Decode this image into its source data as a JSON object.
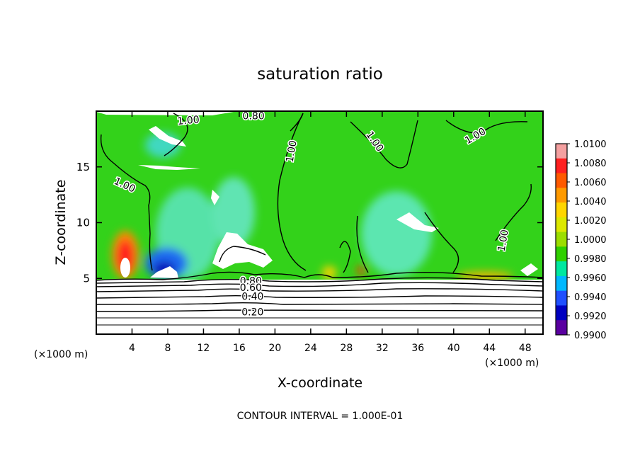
{
  "chart_data": {
    "type": "heatmap",
    "title": "saturation ratio",
    "xlabel": "X-coordinate",
    "ylabel": "Z-coordinate",
    "x_unit": "(×1000 m)",
    "z_unit": "(×1000 m)",
    "xlim": [
      0,
      50
    ],
    "ylim": [
      0,
      20
    ],
    "x_ticks": [
      4,
      8,
      12,
      16,
      20,
      24,
      28,
      32,
      36,
      40,
      44,
      48
    ],
    "y_ticks": [
      5,
      10,
      15
    ],
    "colorbar": {
      "min": 0.99,
      "max": 1.01,
      "labels": [
        "1.0100",
        "1.0080",
        "1.0060",
        "1.0040",
        "1.0020",
        "1.0000",
        "0.9980",
        "0.9960",
        "0.9940",
        "0.9920",
        "0.9900"
      ],
      "colors": [
        "#f4a0a0",
        "#ff2020",
        "#ff5a00",
        "#ff9a00",
        "#ffd600",
        "#dce800",
        "#9cde00",
        "#30d000",
        "#00e8a0",
        "#00b8ff",
        "#2050ff",
        "#0000c0",
        "#5a00a0"
      ]
    },
    "contour_labels": [
      {
        "text": "1.00",
        "x": 10.3,
        "z": 19.2,
        "angle": -5
      },
      {
        "text": "0.80",
        "x": 17.6,
        "z": 19.6,
        "angle": 0
      },
      {
        "text": "1.00",
        "x": 3.2,
        "z": 13.4,
        "angle": 25
      },
      {
        "text": "1.00",
        "x": 21.8,
        "z": 16.4,
        "angle": -80
      },
      {
        "text": "1.00",
        "x": 31.2,
        "z": 17.3,
        "angle": 55
      },
      {
        "text": "1.00",
        "x": 42.4,
        "z": 17.8,
        "angle": -30
      },
      {
        "text": "1.00",
        "x": 45.5,
        "z": 8.4,
        "angle": -80
      },
      {
        "text": "0.80",
        "x": 17.3,
        "z": 4.8,
        "angle": 0
      },
      {
        "text": "0.60",
        "x": 17.3,
        "z": 4.2,
        "angle": 0
      },
      {
        "text": "0.40",
        "x": 17.5,
        "z": 3.4,
        "angle": 0
      },
      {
        "text": "0.20",
        "x": 17.5,
        "z": 2.0,
        "angle": 0
      }
    ],
    "footer": "CONTOUR INTERVAL = 1.000E-01"
  }
}
